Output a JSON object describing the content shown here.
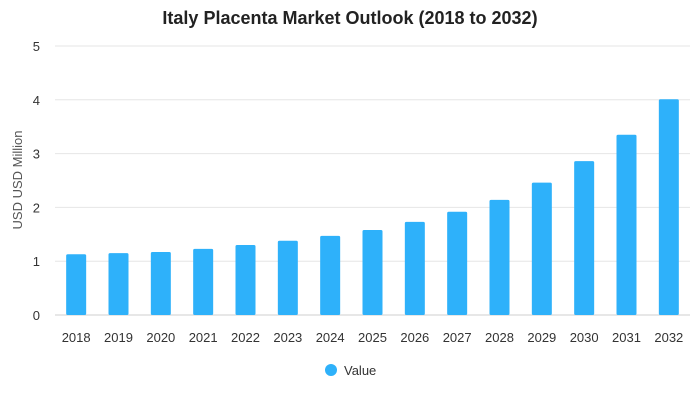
{
  "chart_data": {
    "type": "bar",
    "title": "Italy Placenta Market Outlook (2018 to 2032)",
    "xlabel": "",
    "ylabel": "USD USD Million",
    "categories": [
      "2018",
      "2019",
      "2020",
      "2021",
      "2022",
      "2023",
      "2024",
      "2025",
      "2026",
      "2027",
      "2028",
      "2029",
      "2030",
      "2031",
      "2032"
    ],
    "series": [
      {
        "name": "Value",
        "color": "#2EB1FA",
        "values": [
          1.13,
          1.15,
          1.17,
          1.23,
          1.3,
          1.38,
          1.47,
          1.58,
          1.73,
          1.92,
          2.14,
          2.46,
          2.86,
          3.35,
          4.01
        ]
      }
    ],
    "ylim": [
      0,
      5
    ],
    "yticks": [
      "0",
      "1",
      "2",
      "3",
      "4",
      "5"
    ],
    "grid": true,
    "legend": "bottom-center"
  }
}
